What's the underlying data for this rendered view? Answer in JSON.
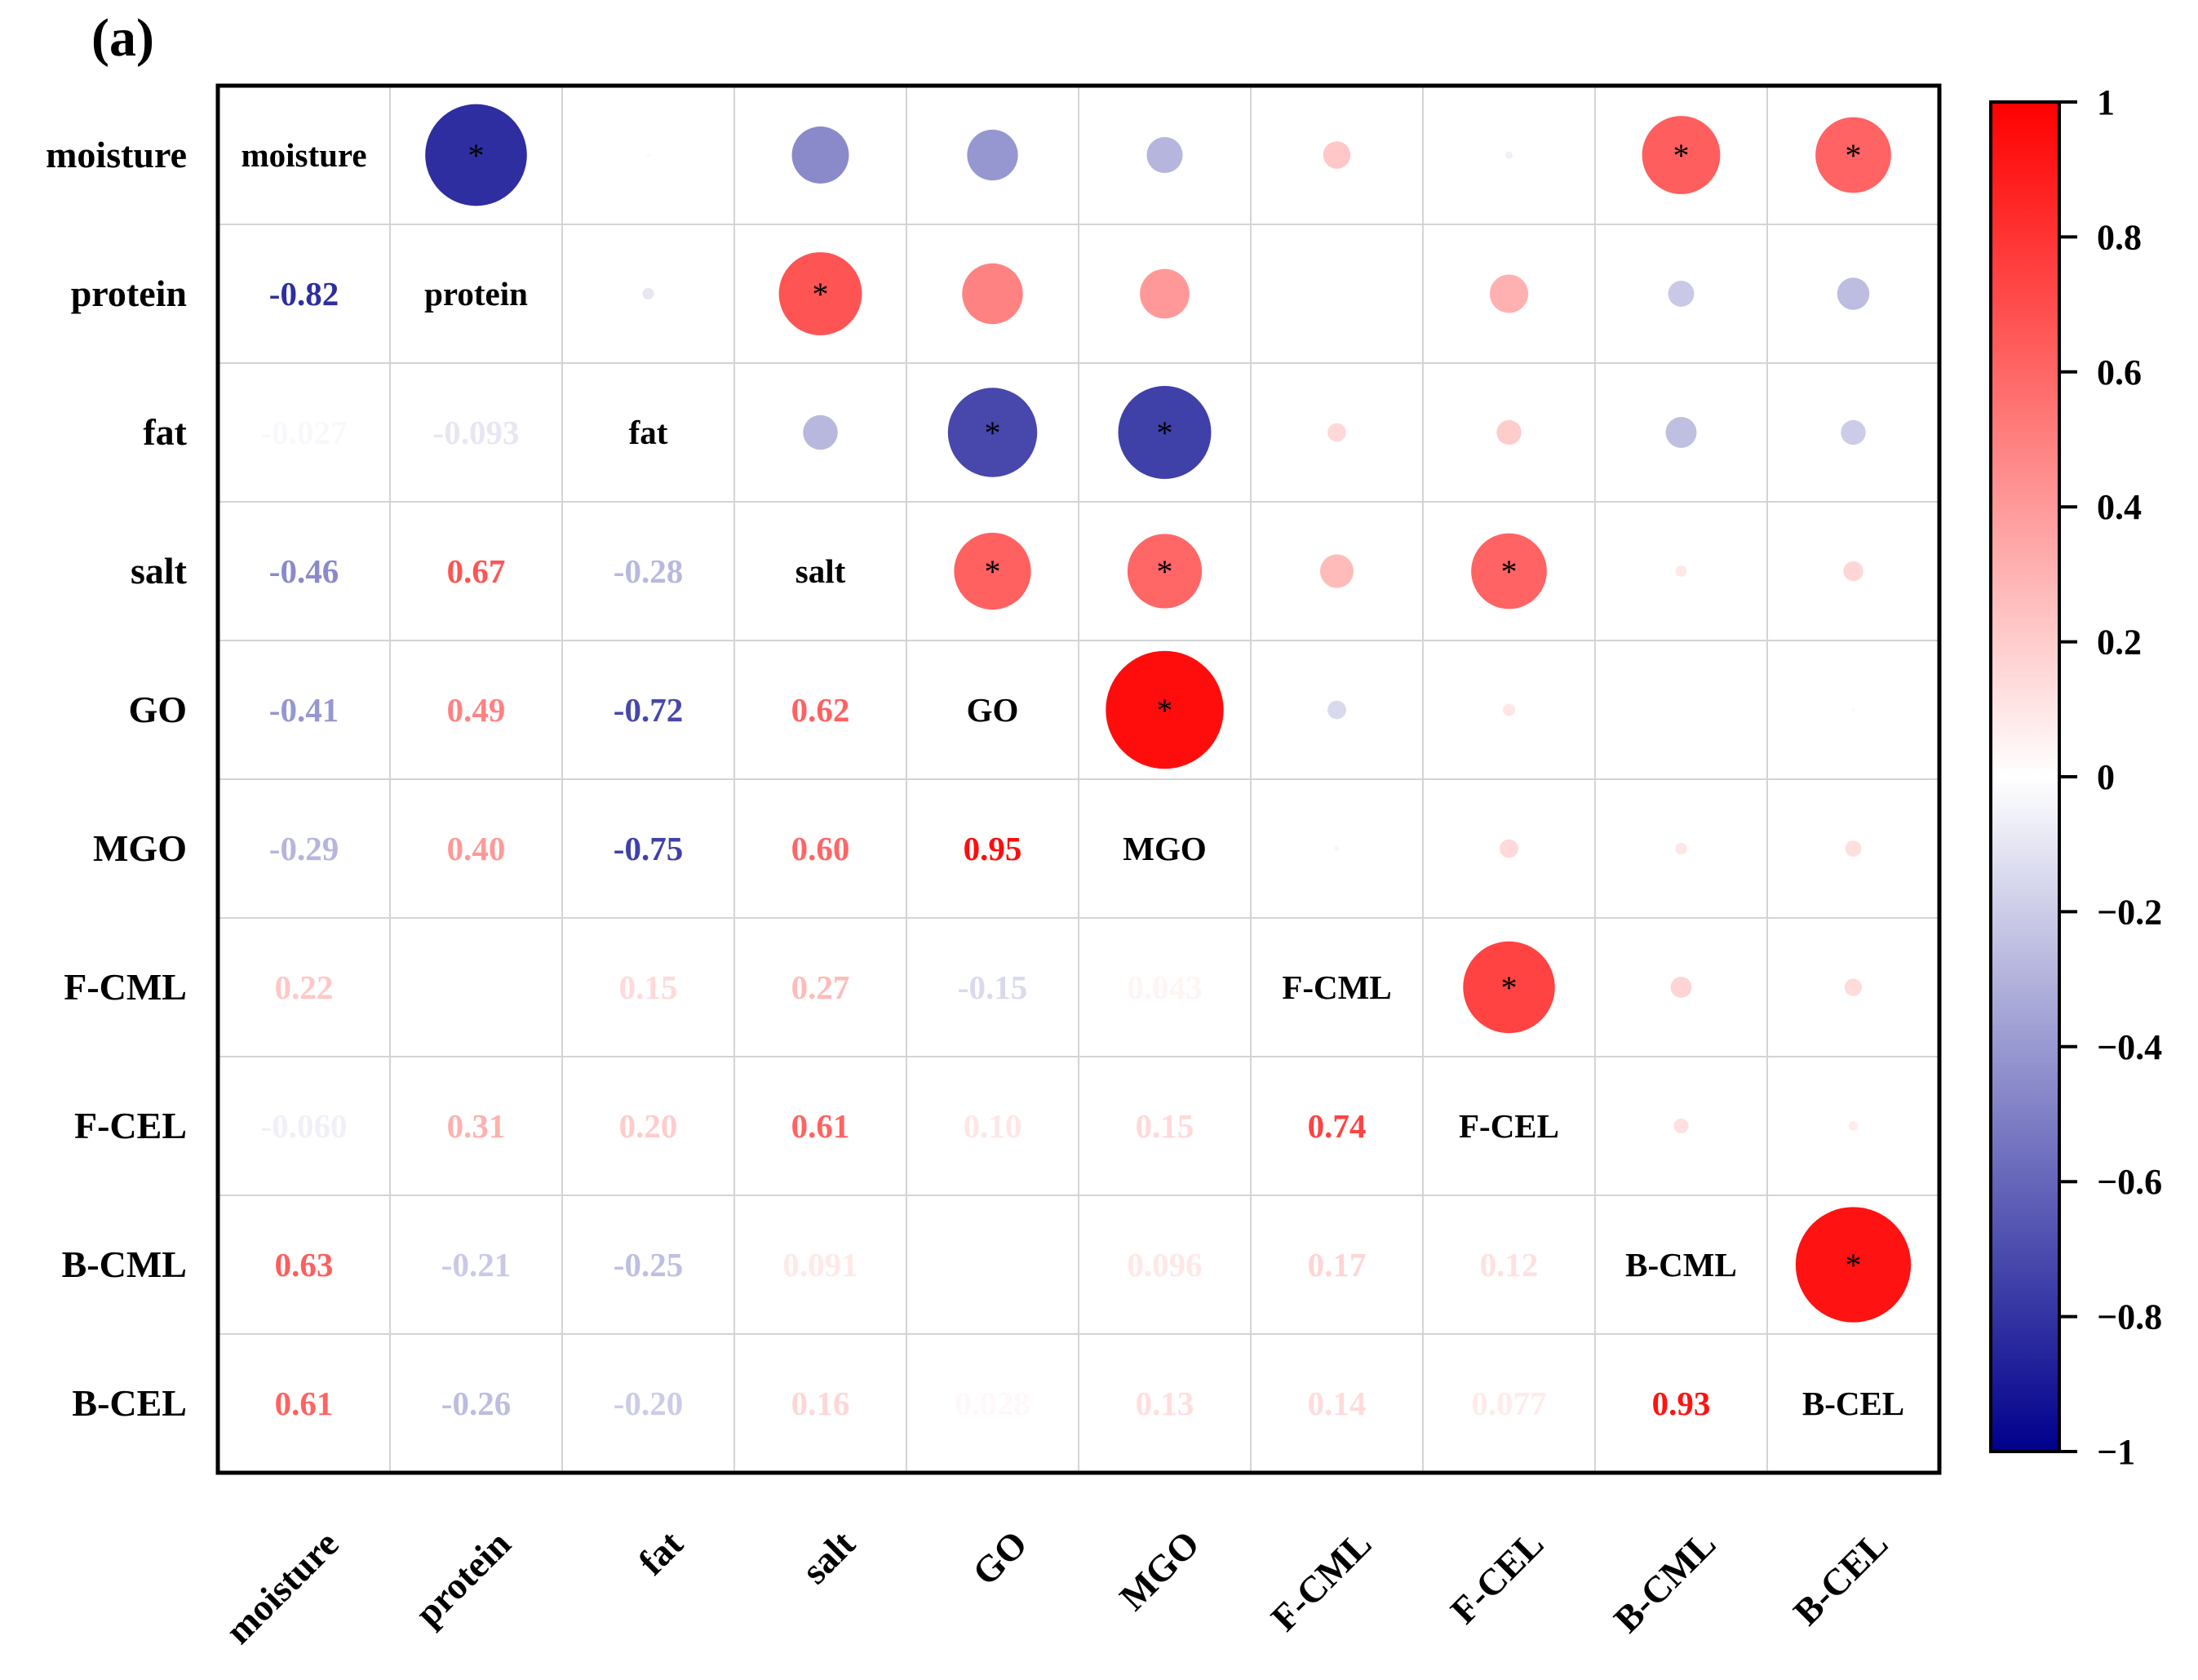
{
  "panel_label": "(a)",
  "chart_data": {
    "type": "heatmap",
    "subtype": "correlation-matrix",
    "variables": [
      "moisture",
      "protein",
      "fat",
      "salt",
      "GO",
      "MGO",
      "F-CML",
      "F-CEL",
      "B-CML",
      "B-CEL"
    ],
    "matrix": [
      [
        1.0,
        -0.82,
        -0.027,
        -0.46,
        -0.41,
        -0.29,
        0.22,
        -0.06,
        0.63,
        0.61
      ],
      [
        -0.82,
        1.0,
        -0.093,
        0.67,
        0.49,
        0.4,
        0.0,
        0.31,
        -0.21,
        -0.26
      ],
      [
        -0.027,
        -0.093,
        1.0,
        -0.28,
        -0.72,
        -0.75,
        0.15,
        0.2,
        -0.25,
        -0.2
      ],
      [
        -0.46,
        0.67,
        -0.28,
        1.0,
        0.62,
        0.6,
        0.27,
        0.61,
        0.091,
        0.16
      ],
      [
        -0.41,
        0.49,
        -0.72,
        0.62,
        1.0,
        0.95,
        -0.15,
        0.1,
        0.0,
        0.028
      ],
      [
        -0.29,
        0.4,
        -0.75,
        0.6,
        0.95,
        1.0,
        0.043,
        0.15,
        0.096,
        0.13
      ],
      [
        0.22,
        0.0,
        0.15,
        0.27,
        -0.15,
        0.043,
        1.0,
        0.74,
        0.17,
        0.14
      ],
      [
        -0.06,
        0.31,
        0.2,
        0.61,
        0.1,
        0.15,
        0.74,
        1.0,
        0.12,
        0.077
      ],
      [
        0.63,
        -0.21,
        -0.25,
        0.091,
        0.0,
        0.096,
        0.17,
        0.12,
        1.0,
        0.93
      ],
      [
        0.61,
        -0.26,
        -0.2,
        0.16,
        0.028,
        0.13,
        0.14,
        0.077,
        0.93,
        1.0
      ]
    ],
    "lower_labels": [
      [
        null,
        null,
        null,
        null,
        null,
        null,
        null,
        null,
        null,
        null
      ],
      [
        "-0.82",
        null,
        null,
        null,
        null,
        null,
        null,
        null,
        null,
        null
      ],
      [
        "-0.027",
        "-0.093",
        null,
        null,
        null,
        null,
        null,
        null,
        null,
        null
      ],
      [
        "-0.46",
        "0.67",
        "-0.28",
        null,
        null,
        null,
        null,
        null,
        null,
        null
      ],
      [
        "-0.41",
        "0.49",
        "-0.72",
        "0.62",
        null,
        null,
        null,
        null,
        null,
        null
      ],
      [
        "-0.29",
        "0.40",
        "-0.75",
        "0.60",
        "0.95",
        null,
        null,
        null,
        null,
        null
      ],
      [
        "0.22",
        "",
        "0.15",
        "0.27",
        "-0.15",
        "0.043",
        null,
        null,
        null,
        null
      ],
      [
        "-0.060",
        "0.31",
        "0.20",
        "0.61",
        "0.10",
        "0.15",
        "0.74",
        null,
        null,
        null
      ],
      [
        "0.63",
        "-0.21",
        "-0.25",
        "0.091",
        "",
        "0.096",
        "0.17",
        "0.12",
        null,
        null
      ],
      [
        "0.61",
        "-0.26",
        "-0.20",
        "0.16",
        "0.028",
        "0.13",
        "0.14",
        "0.077",
        "0.93",
        null
      ]
    ],
    "significant_pairs": [
      [
        0,
        1
      ],
      [
        0,
        8
      ],
      [
        0,
        9
      ],
      [
        1,
        3
      ],
      [
        2,
        4
      ],
      [
        2,
        5
      ],
      [
        3,
        4
      ],
      [
        3,
        5
      ],
      [
        3,
        7
      ],
      [
        4,
        5
      ],
      [
        6,
        7
      ],
      [
        8,
        9
      ]
    ],
    "significance_marker": "*",
    "colorbar": {
      "min": -1,
      "max": 1,
      "ticks": [
        "1",
        "0.8",
        "0.6",
        "0.4",
        "0.2",
        "0",
        "−0.2",
        "−0.4",
        "−0.6",
        "−0.8",
        "−1"
      ],
      "tick_values": [
        1,
        0.8,
        0.6,
        0.4,
        0.2,
        0,
        -0.2,
        -0.4,
        -0.6,
        -0.8,
        -1
      ],
      "colors": {
        "negative": "#00008c",
        "zero": "#ffffff",
        "positive": "#ff0000"
      }
    },
    "lower_triangle": "numbers",
    "upper_triangle": "circles",
    "grid": true,
    "legend_position": "right"
  }
}
